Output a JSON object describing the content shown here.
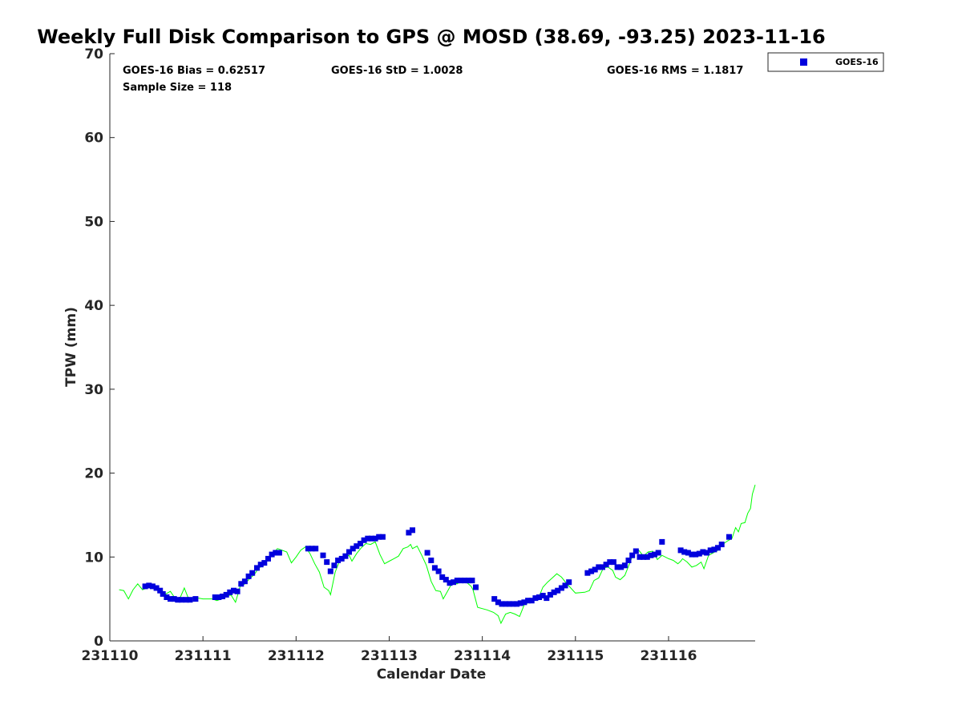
{
  "chart_data": {
    "type": "scatter",
    "title": "Weekly Full Disk Comparison to GPS @ MOSD (38.69, -93.25) 2023-11-16",
    "xlabel": "Calendar Date",
    "ylabel": "TPW (mm)",
    "xlim": [
      0,
      6.93
    ],
    "ylim": [
      0,
      70
    ],
    "xticks": [
      {
        "value": 0,
        "label": "231110"
      },
      {
        "value": 1,
        "label": "231111"
      },
      {
        "value": 2,
        "label": "231112"
      },
      {
        "value": 3,
        "label": "231113"
      },
      {
        "value": 4,
        "label": "231114"
      },
      {
        "value": 5,
        "label": "231115"
      },
      {
        "value": 6,
        "label": "231116"
      }
    ],
    "yticks": [
      {
        "value": 0,
        "label": "0"
      },
      {
        "value": 10,
        "label": "10"
      },
      {
        "value": 20,
        "label": "20"
      },
      {
        "value": 30,
        "label": "30"
      },
      {
        "value": 40,
        "label": "40"
      },
      {
        "value": 50,
        "label": "50"
      },
      {
        "value": 60,
        "label": "60"
      },
      {
        "value": 70,
        "label": "70"
      }
    ],
    "stats": {
      "bias": "GOES-16 Bias = 0.62517",
      "std": "GOES-16 StD = 1.0028",
      "rms": "GOES-16 RMS = 1.1817",
      "sample": "Sample Size = 118"
    },
    "legend": {
      "position": "top-right",
      "entries": [
        "GOES-16"
      ]
    },
    "series": [
      {
        "name": "GOES-16",
        "kind": "markers",
        "color": "#0000dd",
        "points": [
          [
            0.38,
            6.5
          ],
          [
            0.42,
            6.6
          ],
          [
            0.46,
            6.5
          ],
          [
            0.5,
            6.3
          ],
          [
            0.54,
            6.0
          ],
          [
            0.57,
            5.6
          ],
          [
            0.61,
            5.2
          ],
          [
            0.65,
            5.0
          ],
          [
            0.69,
            5.0
          ],
          [
            0.73,
            4.9
          ],
          [
            0.77,
            4.9
          ],
          [
            0.82,
            4.9
          ],
          [
            0.86,
            4.9
          ],
          [
            0.92,
            5.0
          ],
          [
            1.13,
            5.2
          ],
          [
            1.17,
            5.2
          ],
          [
            1.21,
            5.3
          ],
          [
            1.25,
            5.5
          ],
          [
            1.29,
            5.8
          ],
          [
            1.33,
            6.0
          ],
          [
            1.37,
            5.9
          ],
          [
            1.41,
            6.8
          ],
          [
            1.45,
            7.1
          ],
          [
            1.49,
            7.7
          ],
          [
            1.53,
            8.1
          ],
          [
            1.58,
            8.7
          ],
          [
            1.62,
            9.1
          ],
          [
            1.66,
            9.3
          ],
          [
            1.7,
            9.8
          ],
          [
            1.74,
            10.3
          ],
          [
            1.78,
            10.5
          ],
          [
            1.82,
            10.5
          ],
          [
            2.13,
            11.0
          ],
          [
            2.17,
            11.0
          ],
          [
            2.21,
            11.0
          ],
          [
            2.29,
            10.2
          ],
          [
            2.33,
            9.4
          ],
          [
            2.37,
            8.3
          ],
          [
            2.41,
            9.0
          ],
          [
            2.45,
            9.6
          ],
          [
            2.49,
            9.8
          ],
          [
            2.53,
            10.1
          ],
          [
            2.57,
            10.6
          ],
          [
            2.61,
            11.0
          ],
          [
            2.65,
            11.3
          ],
          [
            2.69,
            11.6
          ],
          [
            2.73,
            12.0
          ],
          [
            2.77,
            12.2
          ],
          [
            2.81,
            12.2
          ],
          [
            2.85,
            12.2
          ],
          [
            2.89,
            12.4
          ],
          [
            2.93,
            12.4
          ],
          [
            3.21,
            12.9
          ],
          [
            3.25,
            13.2
          ],
          [
            3.41,
            10.5
          ],
          [
            3.45,
            9.6
          ],
          [
            3.49,
            8.7
          ],
          [
            3.53,
            8.3
          ],
          [
            3.57,
            7.6
          ],
          [
            3.61,
            7.3
          ],
          [
            3.65,
            6.9
          ],
          [
            3.69,
            7.0
          ],
          [
            3.73,
            7.2
          ],
          [
            3.77,
            7.2
          ],
          [
            3.81,
            7.2
          ],
          [
            3.85,
            7.2
          ],
          [
            3.89,
            7.2
          ],
          [
            3.93,
            6.4
          ],
          [
            4.13,
            5.0
          ],
          [
            4.17,
            4.6
          ],
          [
            4.21,
            4.4
          ],
          [
            4.25,
            4.4
          ],
          [
            4.29,
            4.4
          ],
          [
            4.33,
            4.4
          ],
          [
            4.37,
            4.4
          ],
          [
            4.41,
            4.5
          ],
          [
            4.45,
            4.6
          ],
          [
            4.49,
            4.8
          ],
          [
            4.53,
            4.8
          ],
          [
            4.57,
            5.1
          ],
          [
            4.61,
            5.2
          ],
          [
            4.65,
            5.4
          ],
          [
            4.69,
            5.1
          ],
          [
            4.73,
            5.5
          ],
          [
            4.77,
            5.8
          ],
          [
            4.81,
            6.0
          ],
          [
            4.85,
            6.3
          ],
          [
            4.89,
            6.6
          ],
          [
            4.93,
            7.0
          ],
          [
            5.13,
            8.1
          ],
          [
            5.17,
            8.3
          ],
          [
            5.21,
            8.5
          ],
          [
            5.25,
            8.8
          ],
          [
            5.29,
            8.8
          ],
          [
            5.33,
            9.1
          ],
          [
            5.37,
            9.4
          ],
          [
            5.41,
            9.4
          ],
          [
            5.45,
            8.8
          ],
          [
            5.49,
            8.8
          ],
          [
            5.53,
            9.0
          ],
          [
            5.57,
            9.6
          ],
          [
            5.61,
            10.2
          ],
          [
            5.65,
            10.7
          ],
          [
            5.69,
            10.0
          ],
          [
            5.73,
            10.0
          ],
          [
            5.77,
            10.0
          ],
          [
            5.81,
            10.2
          ],
          [
            5.85,
            10.3
          ],
          [
            5.89,
            10.5
          ],
          [
            5.93,
            11.8
          ],
          [
            6.13,
            10.8
          ],
          [
            6.17,
            10.6
          ],
          [
            6.21,
            10.5
          ],
          [
            6.25,
            10.3
          ],
          [
            6.29,
            10.3
          ],
          [
            6.33,
            10.4
          ],
          [
            6.37,
            10.6
          ],
          [
            6.41,
            10.5
          ],
          [
            6.45,
            10.8
          ],
          [
            6.49,
            10.9
          ],
          [
            6.53,
            11.1
          ],
          [
            6.57,
            11.5
          ],
          [
            6.65,
            12.4
          ]
        ]
      },
      {
        "name": "GPS",
        "kind": "line",
        "color": "#00ff00",
        "points": [
          [
            0.1,
            6.1
          ],
          [
            0.15,
            6.0
          ],
          [
            0.2,
            5.0
          ],
          [
            0.25,
            6.1
          ],
          [
            0.3,
            6.8
          ],
          [
            0.35,
            6.1
          ],
          [
            0.4,
            6.3
          ],
          [
            0.45,
            6.4
          ],
          [
            0.5,
            6.2
          ],
          [
            0.55,
            6.0
          ],
          [
            0.6,
            5.6
          ],
          [
            0.65,
            5.9
          ],
          [
            0.7,
            5.1
          ],
          [
            0.75,
            5.0
          ],
          [
            0.8,
            6.3
          ],
          [
            0.85,
            4.9
          ],
          [
            0.9,
            5.2
          ],
          [
            1.0,
            5.0
          ],
          [
            1.1,
            5.0
          ],
          [
            1.15,
            4.8
          ],
          [
            1.2,
            5.0
          ],
          [
            1.25,
            5.3
          ],
          [
            1.3,
            5.5
          ],
          [
            1.35,
            4.6
          ],
          [
            1.4,
            6.5
          ],
          [
            1.45,
            6.8
          ],
          [
            1.5,
            7.4
          ],
          [
            1.55,
            7.9
          ],
          [
            1.6,
            8.7
          ],
          [
            1.65,
            9.0
          ],
          [
            1.7,
            9.7
          ],
          [
            1.75,
            10.4
          ],
          [
            1.8,
            11.0
          ],
          [
            1.85,
            10.8
          ],
          [
            1.9,
            10.6
          ],
          [
            1.95,
            9.3
          ],
          [
            2.0,
            10.0
          ],
          [
            2.05,
            10.8
          ],
          [
            2.1,
            11.2
          ],
          [
            2.15,
            10.4
          ],
          [
            2.2,
            9.2
          ],
          [
            2.25,
            8.2
          ],
          [
            2.3,
            6.4
          ],
          [
            2.35,
            6.0
          ],
          [
            2.37,
            5.5
          ],
          [
            2.42,
            8.2
          ],
          [
            2.47,
            9.6
          ],
          [
            2.52,
            9.9
          ],
          [
            2.57,
            10.2
          ],
          [
            2.6,
            9.5
          ],
          [
            2.65,
            10.4
          ],
          [
            2.7,
            11.1
          ],
          [
            2.75,
            11.6
          ],
          [
            2.8,
            11.5
          ],
          [
            2.85,
            11.8
          ],
          [
            2.9,
            10.3
          ],
          [
            2.95,
            9.2
          ],
          [
            3.0,
            9.5
          ],
          [
            3.05,
            9.8
          ],
          [
            3.1,
            10.1
          ],
          [
            3.15,
            11.0
          ],
          [
            3.2,
            11.2
          ],
          [
            3.23,
            11.5
          ],
          [
            3.25,
            11.0
          ],
          [
            3.3,
            11.3
          ],
          [
            3.35,
            10.2
          ],
          [
            3.4,
            9.0
          ],
          [
            3.45,
            7.1
          ],
          [
            3.5,
            6.0
          ],
          [
            3.55,
            5.9
          ],
          [
            3.58,
            5.0
          ],
          [
            3.63,
            6.0
          ],
          [
            3.68,
            7.0
          ],
          [
            3.73,
            6.8
          ],
          [
            3.78,
            7.2
          ],
          [
            3.83,
            7.0
          ],
          [
            3.88,
            6.5
          ],
          [
            3.9,
            6.1
          ],
          [
            3.95,
            4.0
          ],
          [
            4.05,
            3.7
          ],
          [
            4.12,
            3.4
          ],
          [
            4.17,
            3.0
          ],
          [
            4.2,
            2.1
          ],
          [
            4.25,
            3.2
          ],
          [
            4.3,
            3.4
          ],
          [
            4.35,
            3.2
          ],
          [
            4.4,
            2.9
          ],
          [
            4.45,
            4.3
          ],
          [
            4.5,
            4.6
          ],
          [
            4.55,
            4.9
          ],
          [
            4.6,
            5.0
          ],
          [
            4.65,
            6.4
          ],
          [
            4.7,
            7.0
          ],
          [
            4.75,
            7.5
          ],
          [
            4.8,
            8.0
          ],
          [
            4.85,
            7.6
          ],
          [
            4.9,
            6.9
          ],
          [
            4.95,
            6.3
          ],
          [
            5.0,
            5.7
          ],
          [
            5.1,
            5.8
          ],
          [
            5.15,
            6.0
          ],
          [
            5.2,
            7.2
          ],
          [
            5.25,
            7.5
          ],
          [
            5.3,
            8.7
          ],
          [
            5.35,
            8.8
          ],
          [
            5.4,
            8.4
          ],
          [
            5.43,
            7.6
          ],
          [
            5.48,
            7.3
          ],
          [
            5.53,
            7.8
          ],
          [
            5.58,
            9.2
          ],
          [
            5.63,
            10.6
          ],
          [
            5.68,
            10.8
          ],
          [
            5.73,
            10.1
          ],
          [
            5.78,
            10.6
          ],
          [
            5.83,
            10.7
          ],
          [
            5.88,
            9.7
          ],
          [
            5.93,
            10.2
          ],
          [
            6.0,
            9.8
          ],
          [
            6.05,
            9.6
          ],
          [
            6.1,
            9.2
          ],
          [
            6.13,
            9.5
          ],
          [
            6.15,
            9.8
          ],
          [
            6.2,
            9.4
          ],
          [
            6.25,
            8.8
          ],
          [
            6.3,
            9.0
          ],
          [
            6.35,
            9.4
          ],
          [
            6.38,
            8.6
          ],
          [
            6.43,
            10.2
          ],
          [
            6.48,
            10.5
          ],
          [
            6.53,
            10.8
          ],
          [
            6.58,
            11.5
          ],
          [
            6.63,
            11.9
          ],
          [
            6.68,
            12.2
          ],
          [
            6.72,
            13.5
          ],
          [
            6.75,
            13.0
          ],
          [
            6.78,
            14.0
          ],
          [
            6.82,
            14.1
          ],
          [
            6.85,
            15.2
          ],
          [
            6.88,
            15.8
          ],
          [
            6.9,
            17.5
          ],
          [
            6.93,
            18.6
          ]
        ]
      }
    ]
  }
}
